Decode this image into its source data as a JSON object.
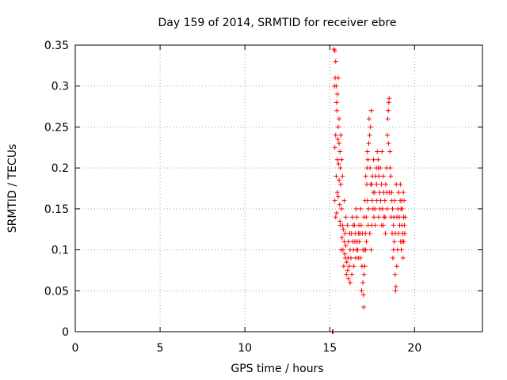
{
  "chart_data": {
    "type": "scatter",
    "title": "Day 159 of 2014, SRMTID for receiver ebre",
    "xlabel": "GPS time / hours",
    "ylabel": "SRMTID / TECUs",
    "xlim": [
      0,
      24
    ],
    "ylim": [
      0,
      0.35
    ],
    "x_ticks": [
      0,
      5,
      10,
      15,
      20
    ],
    "y_ticks": [
      0,
      0.05,
      0.1,
      0.15,
      0.2,
      0.25,
      0.3,
      0.35
    ],
    "grid": true,
    "marker": "+",
    "series_color": "#ff0000",
    "points": [
      [
        15.15,
        0.0
      ],
      [
        15.2,
        0.0
      ],
      [
        15.25,
        0.345
      ],
      [
        15.3,
        0.343
      ],
      [
        15.35,
        0.33
      ],
      [
        15.32,
        0.31
      ],
      [
        15.28,
        0.3
      ],
      [
        15.38,
        0.3
      ],
      [
        15.45,
        0.29
      ],
      [
        15.4,
        0.28
      ],
      [
        15.42,
        0.27
      ],
      [
        15.5,
        0.25
      ],
      [
        15.35,
        0.24
      ],
      [
        15.48,
        0.235
      ],
      [
        15.55,
        0.23
      ],
      [
        15.3,
        0.225
      ],
      [
        15.6,
        0.22
      ],
      [
        15.45,
        0.21
      ],
      [
        15.52,
        0.205
      ],
      [
        15.62,
        0.2
      ],
      [
        15.38,
        0.19
      ],
      [
        15.55,
        0.185
      ],
      [
        15.65,
        0.18
      ],
      [
        15.45,
        0.17
      ],
      [
        15.5,
        0.165
      ],
      [
        15.3,
        0.16
      ],
      [
        15.58,
        0.155
      ],
      [
        15.7,
        0.15
      ],
      [
        15.4,
        0.145
      ],
      [
        15.35,
        0.14
      ],
      [
        15.6,
        0.135
      ],
      [
        15.75,
        0.13
      ],
      [
        15.8,
        0.125
      ],
      [
        15.9,
        0.12
      ],
      [
        15.72,
        0.115
      ],
      [
        15.85,
        0.11
      ],
      [
        15.95,
        0.105
      ],
      [
        15.78,
        0.1
      ],
      [
        15.88,
        0.095
      ],
      [
        15.92,
        0.09
      ],
      [
        16.0,
        0.085
      ],
      [
        15.82,
        0.08
      ],
      [
        16.05,
        0.075
      ],
      [
        15.98,
        0.07
      ],
      [
        16.1,
        0.065
      ],
      [
        16.2,
        0.06
      ],
      [
        16.3,
        0.07
      ],
      [
        16.15,
        0.08
      ],
      [
        16.25,
        0.09
      ],
      [
        16.4,
        0.1
      ],
      [
        16.35,
        0.11
      ],
      [
        16.5,
        0.12
      ],
      [
        16.45,
        0.13
      ],
      [
        16.6,
        0.14
      ],
      [
        16.55,
        0.15
      ],
      [
        16.7,
        0.12
      ],
      [
        16.65,
        0.1
      ],
      [
        16.8,
        0.09
      ],
      [
        16.75,
        0.11
      ],
      [
        16.85,
        0.13
      ],
      [
        16.9,
        0.08
      ],
      [
        16.95,
        0.06
      ],
      [
        16.98,
        0.045
      ],
      [
        17.0,
        0.03
      ],
      [
        16.88,
        0.05
      ],
      [
        17.02,
        0.07
      ],
      [
        17.05,
        0.1
      ],
      [
        17.1,
        0.12
      ],
      [
        17.15,
        0.14
      ],
      [
        17.08,
        0.16
      ],
      [
        17.18,
        0.18
      ],
      [
        17.12,
        0.19
      ],
      [
        17.2,
        0.2
      ],
      [
        17.25,
        0.21
      ],
      [
        17.22,
        0.22
      ],
      [
        17.3,
        0.23
      ],
      [
        17.35,
        0.24
      ],
      [
        17.4,
        0.25
      ],
      [
        17.32,
        0.26
      ],
      [
        17.45,
        0.27
      ],
      [
        17.38,
        0.2
      ],
      [
        17.42,
        0.18
      ],
      [
        17.5,
        0.16
      ],
      [
        17.55,
        0.15
      ],
      [
        17.6,
        0.14
      ],
      [
        17.48,
        0.13
      ],
      [
        17.65,
        0.17
      ],
      [
        17.7,
        0.19
      ],
      [
        17.75,
        0.2
      ],
      [
        17.8,
        0.22
      ],
      [
        17.85,
        0.21
      ],
      [
        17.9,
        0.19
      ],
      [
        17.95,
        0.17
      ],
      [
        18.0,
        0.16
      ],
      [
        18.05,
        0.18
      ],
      [
        18.1,
        0.15
      ],
      [
        18.15,
        0.13
      ],
      [
        18.2,
        0.14
      ],
      [
        18.25,
        0.16
      ],
      [
        18.3,
        0.18
      ],
      [
        18.35,
        0.2
      ],
      [
        18.4,
        0.24
      ],
      [
        18.45,
        0.27
      ],
      [
        18.5,
        0.285
      ],
      [
        18.48,
        0.28
      ],
      [
        18.42,
        0.26
      ],
      [
        18.55,
        0.22
      ],
      [
        18.6,
        0.19
      ],
      [
        18.65,
        0.17
      ],
      [
        18.7,
        0.15
      ],
      [
        18.75,
        0.13
      ],
      [
        18.8,
        0.11
      ],
      [
        18.72,
        0.09
      ],
      [
        18.85,
        0.07
      ],
      [
        18.9,
        0.055
      ],
      [
        18.88,
        0.05
      ],
      [
        18.95,
        0.08
      ],
      [
        19.0,
        0.1
      ],
      [
        19.05,
        0.12
      ],
      [
        19.1,
        0.14
      ],
      [
        19.15,
        0.16
      ],
      [
        19.2,
        0.15
      ],
      [
        19.25,
        0.13
      ],
      [
        19.3,
        0.12
      ],
      [
        19.35,
        0.14
      ],
      [
        19.4,
        0.13
      ],
      [
        19.28,
        0.11
      ],
      [
        19.22,
        0.1
      ],
      [
        19.32,
        0.09
      ],
      [
        19.38,
        0.16
      ],
      [
        15.5,
        0.31
      ],
      [
        15.55,
        0.26
      ],
      [
        15.65,
        0.24
      ],
      [
        15.7,
        0.21
      ],
      [
        15.75,
        0.19
      ],
      [
        15.85,
        0.16
      ],
      [
        15.95,
        0.14
      ],
      [
        16.05,
        0.13
      ],
      [
        16.1,
        0.11
      ],
      [
        16.2,
        0.1
      ],
      [
        16.28,
        0.12
      ],
      [
        16.33,
        0.14
      ],
      [
        16.42,
        0.08
      ],
      [
        16.52,
        0.09
      ],
      [
        16.62,
        0.11
      ],
      [
        16.72,
        0.13
      ],
      [
        16.82,
        0.15
      ],
      [
        16.92,
        0.12
      ],
      [
        17.02,
        0.14
      ],
      [
        17.12,
        0.1
      ],
      [
        17.22,
        0.16
      ],
      [
        17.28,
        0.15
      ],
      [
        17.36,
        0.12
      ],
      [
        17.44,
        0.1
      ],
      [
        17.52,
        0.19
      ],
      [
        17.58,
        0.21
      ],
      [
        17.68,
        0.13
      ],
      [
        17.78,
        0.16
      ],
      [
        17.88,
        0.14
      ],
      [
        17.98,
        0.2
      ],
      [
        18.08,
        0.22
      ],
      [
        18.18,
        0.17
      ],
      [
        18.28,
        0.12
      ],
      [
        18.38,
        0.15
      ],
      [
        18.52,
        0.17
      ],
      [
        18.62,
        0.14
      ],
      [
        18.68,
        0.12
      ],
      [
        18.78,
        0.14
      ],
      [
        18.82,
        0.16
      ],
      [
        18.92,
        0.18
      ],
      [
        19.02,
        0.15
      ],
      [
        19.12,
        0.13
      ],
      [
        19.18,
        0.11
      ],
      [
        19.26,
        0.15
      ],
      [
        19.34,
        0.17
      ],
      [
        19.42,
        0.12
      ],
      [
        15.62,
        0.13
      ],
      [
        15.68,
        0.1
      ],
      [
        16.08,
        0.09
      ],
      [
        16.18,
        0.12
      ],
      [
        16.38,
        0.13
      ],
      [
        16.48,
        0.11
      ],
      [
        16.58,
        0.1
      ],
      [
        16.68,
        0.09
      ],
      [
        16.78,
        0.12
      ],
      [
        16.96,
        0.1
      ],
      [
        17.06,
        0.08
      ],
      [
        17.16,
        0.11
      ],
      [
        17.26,
        0.13
      ],
      [
        17.46,
        0.18
      ],
      [
        17.56,
        0.17
      ],
      [
        17.66,
        0.15
      ],
      [
        17.76,
        0.18
      ],
      [
        17.86,
        0.2
      ],
      [
        17.96,
        0.15
      ],
      [
        18.06,
        0.13
      ],
      [
        18.16,
        0.19
      ],
      [
        18.26,
        0.14
      ],
      [
        18.36,
        0.17
      ],
      [
        18.46,
        0.23
      ],
      [
        18.56,
        0.2
      ],
      [
        18.66,
        0.16
      ],
      [
        18.76,
        0.1
      ],
      [
        18.86,
        0.12
      ],
      [
        18.96,
        0.14
      ],
      [
        19.06,
        0.17
      ],
      [
        19.16,
        0.18
      ],
      [
        19.24,
        0.16
      ],
      [
        19.36,
        0.11
      ],
      [
        19.44,
        0.14
      ]
    ]
  }
}
